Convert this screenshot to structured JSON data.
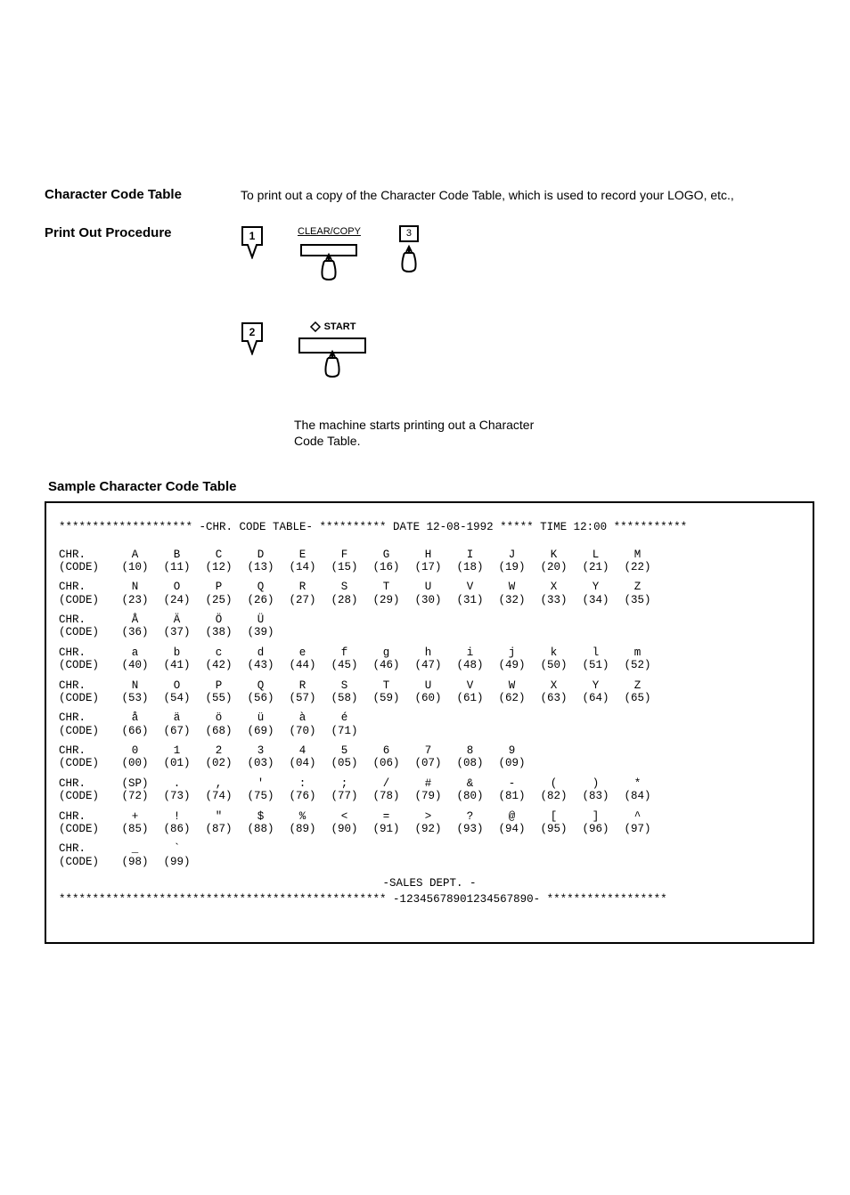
{
  "headings": {
    "char_table": "Character Code Table",
    "print_proc": "Print Out Procedure",
    "sample": "Sample Character Code Table"
  },
  "intro": "To print out a copy of the Character Code Table, which is used to record your LOGO, etc.,",
  "caption": "The machine starts printing out a Character Code Table.",
  "key_labels": {
    "clear_copy": "CLEAR/COPY",
    "start": "START",
    "three": "3"
  },
  "steps": {
    "one": "1",
    "two": "2"
  },
  "printout": {
    "header": "******************** -CHR. CODE TABLE- ********** DATE 12-08-1992 ***** TIME 12:00 ***********",
    "row_label_chr": "CHR.",
    "row_label_code": "(CODE)",
    "rows": [
      {
        "chars": [
          "A",
          "B",
          "C",
          "D",
          "E",
          "F",
          "G",
          "H",
          "I",
          "J",
          "K",
          "L",
          "M"
        ],
        "codes": [
          "(10)",
          "(11)",
          "(12)",
          "(13)",
          "(14)",
          "(15)",
          "(16)",
          "(17)",
          "(18)",
          "(19)",
          "(20)",
          "(21)",
          "(22)"
        ]
      },
      {
        "chars": [
          "N",
          "O",
          "P",
          "Q",
          "R",
          "S",
          "T",
          "U",
          "V",
          "W",
          "X",
          "Y",
          "Z"
        ],
        "codes": [
          "(23)",
          "(24)",
          "(25)",
          "(26)",
          "(27)",
          "(28)",
          "(29)",
          "(30)",
          "(31)",
          "(32)",
          "(33)",
          "(34)",
          "(35)"
        ]
      },
      {
        "chars": [
          "Å",
          "Ä",
          "Ö",
          "Ü"
        ],
        "codes": [
          "(36)",
          "(37)",
          "(38)",
          "(39)"
        ]
      },
      {
        "chars": [
          "a",
          "b",
          "c",
          "d",
          "e",
          "f",
          "g",
          "h",
          "i",
          "j",
          "k",
          "l",
          "m"
        ],
        "codes": [
          "(40)",
          "(41)",
          "(42)",
          "(43)",
          "(44)",
          "(45)",
          "(46)",
          "(47)",
          "(48)",
          "(49)",
          "(50)",
          "(51)",
          "(52)"
        ]
      },
      {
        "chars": [
          "N",
          "O",
          "P",
          "Q",
          "R",
          "S",
          "T",
          "U",
          "V",
          "W",
          "X",
          "Y",
          "Z"
        ],
        "codes": [
          "(53)",
          "(54)",
          "(55)",
          "(56)",
          "(57)",
          "(58)",
          "(59)",
          "(60)",
          "(61)",
          "(62)",
          "(63)",
          "(64)",
          "(65)"
        ]
      },
      {
        "chars": [
          "å",
          "ä",
          "ö",
          "ü",
          "à",
          "é"
        ],
        "codes": [
          "(66)",
          "(67)",
          "(68)",
          "(69)",
          "(70)",
          "(71)"
        ]
      },
      {
        "chars": [
          "0",
          "1",
          "2",
          "3",
          "4",
          "5",
          "6",
          "7",
          "8",
          "9"
        ],
        "codes": [
          "(00)",
          "(01)",
          "(02)",
          "(03)",
          "(04)",
          "(05)",
          "(06)",
          "(07)",
          "(08)",
          "(09)"
        ]
      },
      {
        "chars": [
          "(SP)",
          ".",
          ",",
          "'",
          ":",
          ";",
          "/",
          "#",
          "&",
          "-",
          "(",
          ")",
          "*"
        ],
        "codes": [
          "(72)",
          "(73)",
          "(74)",
          "(75)",
          "(76)",
          "(77)",
          "(78)",
          "(79)",
          "(80)",
          "(81)",
          "(82)",
          "(83)",
          "(84)"
        ]
      },
      {
        "chars": [
          "+",
          "!",
          "\"",
          "$",
          "%",
          "<",
          "=",
          ">",
          "?",
          "@",
          "[",
          "]",
          "^"
        ],
        "codes": [
          "(85)",
          "(86)",
          "(87)",
          "(88)",
          "(89)",
          "(90)",
          "(91)",
          "(92)",
          "(93)",
          "(94)",
          "(95)",
          "(96)",
          "(97)"
        ]
      },
      {
        "chars": [
          "_",
          "`"
        ],
        "codes": [
          "(98)",
          "(99)"
        ]
      }
    ],
    "footer1": "-SALES DEPT.                       -",
    "footer2": "************************************************* -12345678901234567890- ******************"
  },
  "colors": {
    "text": "#000000",
    "bg": "#ffffff"
  }
}
